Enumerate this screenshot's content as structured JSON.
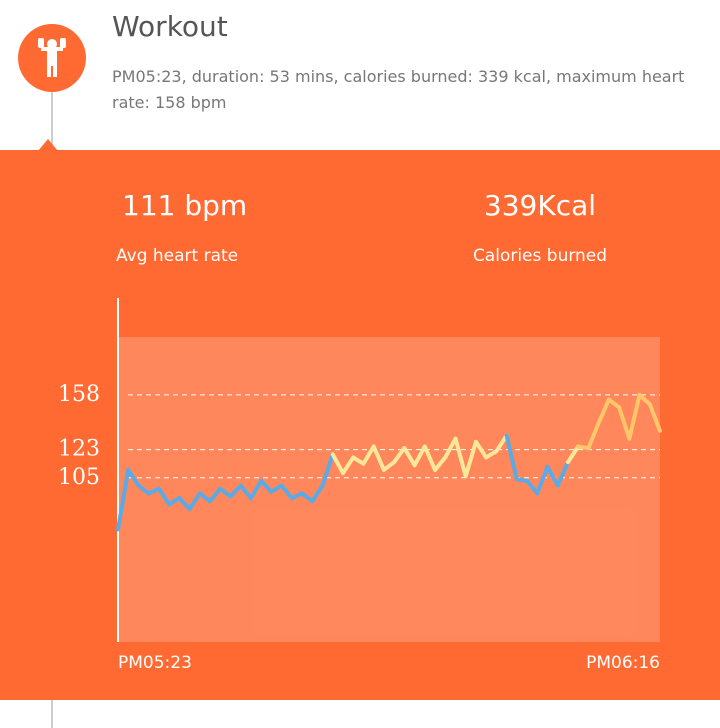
{
  "header": {
    "title": "Workout",
    "description": "PM05:23, duration: 53 mins, calories burned: 339 kcal, maximum heart rate: 158 bpm"
  },
  "stats": [
    {
      "value": "111 bpm",
      "label": "Avg heart rate"
    },
    {
      "value": "339Kcal",
      "label": "Calories burned"
    }
  ],
  "chart_data": {
    "type": "line",
    "categories": [
      "PM05:23",
      null,
      null,
      null,
      null,
      null,
      null,
      null,
      null,
      null,
      null,
      null,
      null,
      null,
      null,
      null,
      null,
      null,
      null,
      null,
      null,
      null,
      null,
      null,
      null,
      null,
      null,
      null,
      null,
      null,
      null,
      null,
      null,
      null,
      null,
      null,
      null,
      null,
      null,
      null,
      null,
      null,
      null,
      null,
      null,
      null,
      null,
      null,
      null,
      null,
      null,
      null,
      null,
      "PM06:16"
    ],
    "values": [
      72,
      110,
      100,
      95,
      98,
      88,
      92,
      85,
      95,
      90,
      98,
      93,
      100,
      92,
      103,
      96,
      100,
      92,
      95,
      90,
      100,
      120,
      108,
      118,
      114,
      125,
      110,
      115,
      124,
      113,
      125,
      110,
      118,
      130,
      106,
      128,
      118,
      122,
      132,
      104,
      103,
      95,
      112,
      100,
      115,
      125,
      124,
      140,
      155,
      150,
      130,
      158,
      152,
      135
    ],
    "zone_colors": [
      "#5aaae6",
      "#fde89a",
      "#ffc76a"
    ],
    "ylim": [
      0,
      195
    ],
    "yticks": [
      105,
      123,
      158
    ],
    "grid": true
  }
}
